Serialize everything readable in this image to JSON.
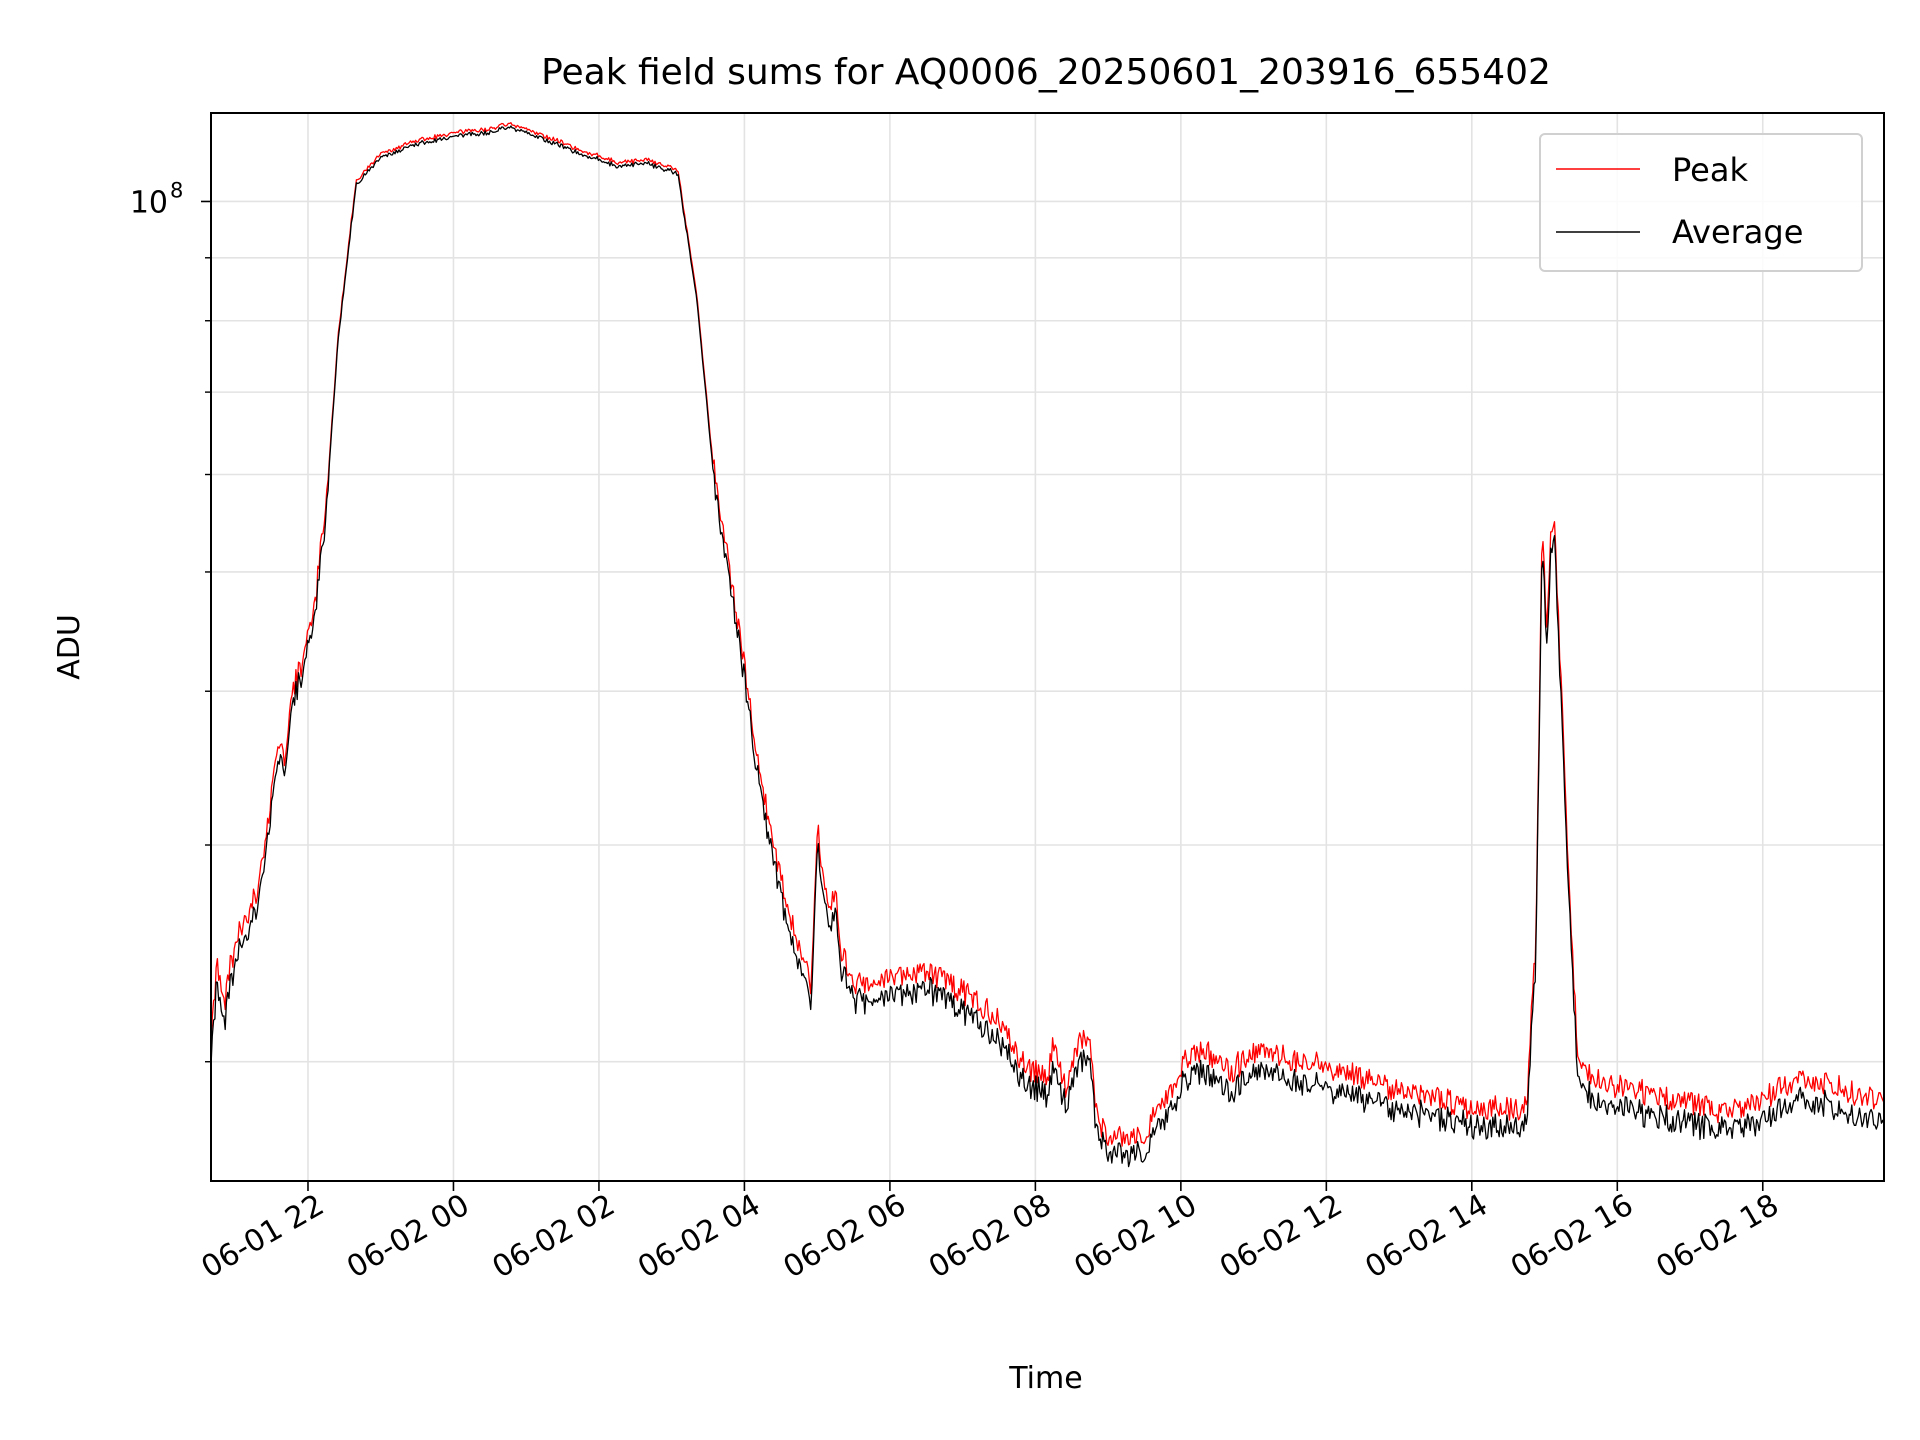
{
  "chart_data": {
    "type": "line",
    "title": "Peak field sums for AQ0006_20250601_203916_655402",
    "xlabel": "Time",
    "ylabel": "ADU",
    "yscale": "log",
    "xlim": [
      "06-01 20:40",
      "06-02 19:40"
    ],
    "ylim": [
      16000000.0,
      118000000.0
    ],
    "x_ticks": [
      {
        "value": "06-01 22:00",
        "label": "06-01 22"
      },
      {
        "value": "06-02 00:00",
        "label": "06-02 00"
      },
      {
        "value": "06-02 02:00",
        "label": "06-02 02"
      },
      {
        "value": "06-02 04:00",
        "label": "06-02 04"
      },
      {
        "value": "06-02 06:00",
        "label": "06-02 06"
      },
      {
        "value": "06-02 08:00",
        "label": "06-02 08"
      },
      {
        "value": "06-02 10:00",
        "label": "06-02 10"
      },
      {
        "value": "06-02 12:00",
        "label": "06-02 12"
      },
      {
        "value": "06-02 14:00",
        "label": "06-02 14"
      },
      {
        "value": "06-02 16:00",
        "label": "06-02 16"
      },
      {
        "value": "06-02 18:00",
        "label": "06-02 18"
      }
    ],
    "y_major_tick": {
      "value": 100000000,
      "label_base": "10",
      "label_exp": "8"
    },
    "y_minor_ticks": [
      20000000,
      30000000,
      40000000,
      50000000,
      60000000,
      70000000,
      80000000,
      90000000
    ],
    "grid": true,
    "legend_position": "top-right",
    "series": [
      {
        "name": "Peak",
        "color": "#ff0000",
        "x": [
          "06-01 20:40",
          "06-01 20:45",
          "06-01 20:50",
          "06-01 21:00",
          "06-01 21:10",
          "06-01 21:20",
          "06-01 21:30",
          "06-01 21:35",
          "06-01 21:40",
          "06-01 21:48",
          "06-01 21:55",
          "06-01 22:05",
          "06-01 22:15",
          "06-01 22:25",
          "06-01 22:35",
          "06-01 22:40",
          "06-01 23:00",
          "06-01 23:30",
          "06-02 00:00",
          "06-02 00:30",
          "06-02 00:45",
          "06-02 01:15",
          "06-02 01:45",
          "06-02 02:15",
          "06-02 02:40",
          "06-02 03:05",
          "06-02 03:20",
          "06-02 03:35",
          "06-02 03:55",
          "06-02 04:15",
          "06-02 04:30",
          "06-02 04:45",
          "06-02 04:55",
          "06-02 05:00",
          "06-02 05:10",
          "06-02 05:15",
          "06-02 05:20",
          "06-02 05:30",
          "06-02 06:00",
          "06-02 06:30",
          "06-02 07:00",
          "06-02 07:30",
          "06-02 07:50",
          "06-02 08:10",
          "06-02 08:15",
          "06-02 08:25",
          "06-02 08:35",
          "06-02 08:45",
          "06-02 08:50",
          "06-02 09:00",
          "06-02 09:20",
          "06-02 09:30",
          "06-02 09:50",
          "06-02 10:10",
          "06-02 10:35",
          "06-02 10:40",
          "06-02 11:00",
          "06-02 11:30",
          "06-02 12:00",
          "06-02 12:30",
          "06-02 13:00",
          "06-02 13:30",
          "06-02 14:00",
          "06-02 14:30",
          "06-02 14:45",
          "06-02 14:53",
          "06-02 14:58",
          "06-02 15:02",
          "06-02 15:05",
          "06-02 15:08",
          "06-02 15:12",
          "06-02 15:20",
          "06-02 15:27",
          "06-02 15:35",
          "06-02 16:00",
          "06-02 16:30",
          "06-02 17:00",
          "06-02 17:30",
          "06-02 18:00",
          "06-02 18:30",
          "06-02 19:00",
          "06-02 19:40"
        ],
        "values": [
          21000000,
          24000000,
          22000000,
          25000000,
          26000000,
          28000000,
          33000000,
          36000000,
          35000000,
          40000000,
          42000000,
          46000000,
          57000000,
          78000000,
          95000000,
          104000000,
          109000000,
          112000000,
          113500000,
          114500000,
          115500000,
          113000000,
          110000000,
          107500000,
          108000000,
          106000000,
          85000000,
          60000000,
          45000000,
          33000000,
          28000000,
          24500000,
          23000000,
          31000000,
          26000000,
          27500000,
          24500000,
          23000000,
          23200000,
          23600000,
          22700000,
          21500000,
          19800000,
          19300000,
          20500000,
          19000000,
          20500000,
          21000000,
          18000000,
          17200000,
          17300000,
          17400000,
          18800000,
          20500000,
          19800000,
          19500000,
          20200000,
          20000000,
          19700000,
          19300000,
          18800000,
          18600000,
          18300000,
          18200000,
          18300000,
          25000000,
          55000000,
          44000000,
          53000000,
          55000000,
          44000000,
          28000000,
          20500000,
          19500000,
          19000000,
          18700000,
          18400000,
          18100000,
          18500000,
          19300000,
          19000000,
          18400000
        ]
      },
      {
        "name": "Average",
        "color": "#000000",
        "x": [
          "06-01 20:40",
          "06-01 20:45",
          "06-01 20:50",
          "06-01 21:00",
          "06-01 21:10",
          "06-01 21:20",
          "06-01 21:30",
          "06-01 21:35",
          "06-01 21:40",
          "06-01 21:48",
          "06-01 21:55",
          "06-01 22:05",
          "06-01 22:15",
          "06-01 22:25",
          "06-01 22:35",
          "06-01 22:40",
          "06-01 23:00",
          "06-01 23:30",
          "06-02 00:00",
          "06-02 00:30",
          "06-02 00:45",
          "06-02 01:15",
          "06-02 01:45",
          "06-02 02:15",
          "06-02 02:40",
          "06-02 03:05",
          "06-02 03:20",
          "06-02 03:35",
          "06-02 03:55",
          "06-02 04:15",
          "06-02 04:30",
          "06-02 04:45",
          "06-02 04:55",
          "06-02 05:00",
          "06-02 05:10",
          "06-02 05:15",
          "06-02 05:20",
          "06-02 05:30",
          "06-02 06:00",
          "06-02 06:30",
          "06-02 07:00",
          "06-02 07:30",
          "06-02 07:50",
          "06-02 08:10",
          "06-02 08:15",
          "06-02 08:25",
          "06-02 08:35",
          "06-02 08:45",
          "06-02 08:50",
          "06-02 09:00",
          "06-02 09:20",
          "06-02 09:30",
          "06-02 09:50",
          "06-02 10:10",
          "06-02 10:35",
          "06-02 10:40",
          "06-02 11:00",
          "06-02 11:30",
          "06-02 12:00",
          "06-02 12:30",
          "06-02 13:00",
          "06-02 13:30",
          "06-02 14:00",
          "06-02 14:30",
          "06-02 14:45",
          "06-02 14:53",
          "06-02 14:58",
          "06-02 15:02",
          "06-02 15:05",
          "06-02 15:08",
          "06-02 15:12",
          "06-02 15:20",
          "06-02 15:27",
          "06-02 15:35",
          "06-02 16:00",
          "06-02 16:30",
          "06-02 17:00",
          "06-02 17:30",
          "06-02 18:00",
          "06-02 18:30",
          "06-02 19:00",
          "06-02 19:40"
        ],
        "values": [
          20500000,
          23500000,
          21500000,
          24500000,
          25500000,
          27500000,
          32500000,
          35500000,
          34500000,
          39500000,
          41500000,
          45500000,
          56500000,
          77500000,
          94500000,
          103500000,
          108500000,
          111500000,
          113000000,
          114000000,
          115000000,
          112500000,
          109500000,
          107000000,
          107500000,
          105500000,
          84500000,
          59500000,
          44500000,
          32500000,
          27500000,
          24000000,
          22500000,
          30500000,
          25500000,
          27000000,
          24000000,
          22600000,
          22700000,
          23100000,
          22200000,
          21000000,
          19400000,
          18900000,
          20000000,
          18600000,
          20000000,
          20500000,
          17700000,
          16900000,
          17000000,
          17100000,
          18400000,
          20000000,
          19300000,
          19000000,
          19700000,
          19500000,
          19200000,
          18800000,
          18400000,
          18200000,
          17900000,
          17800000,
          17900000,
          24500000,
          54000000,
          43000000,
          52000000,
          54000000,
          43000000,
          27500000,
          20000000,
          19000000,
          18500000,
          18200000,
          17900000,
          17700000,
          18000000,
          18800000,
          18500000,
          17900000
        ]
      }
    ]
  }
}
